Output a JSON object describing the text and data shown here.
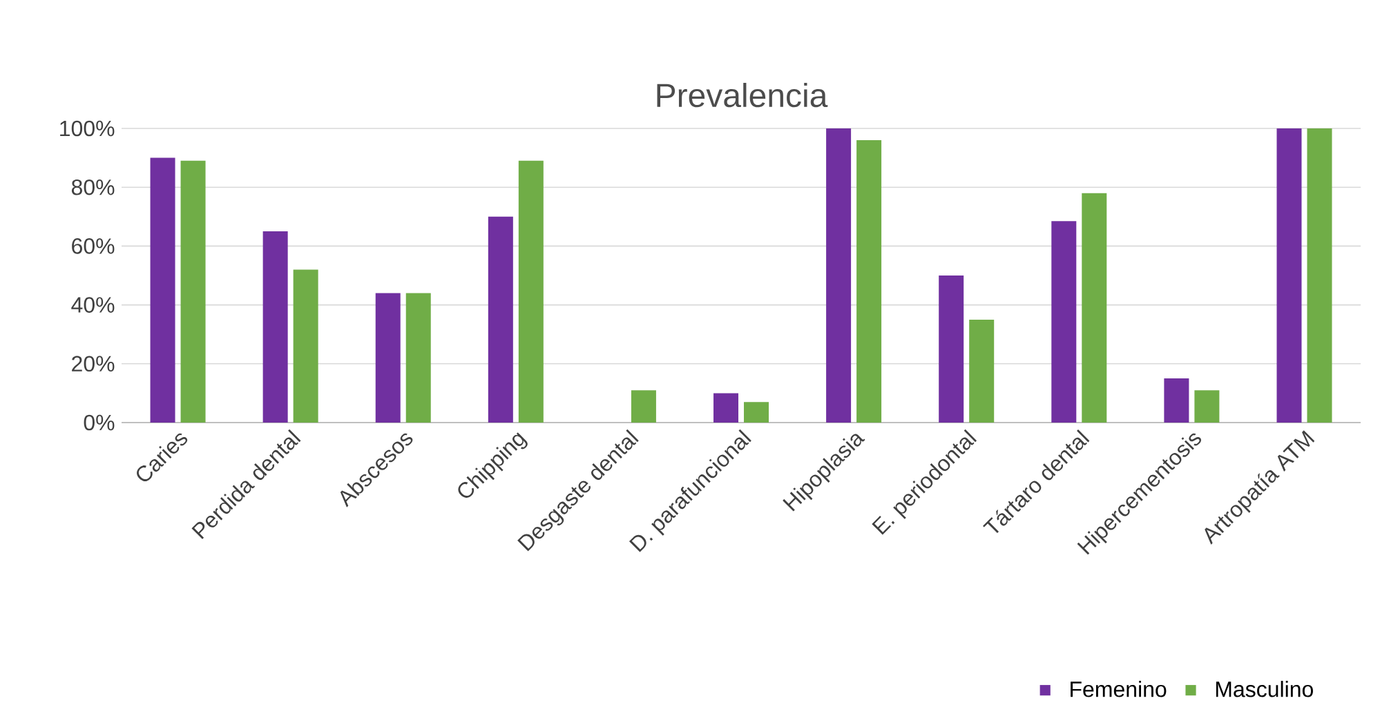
{
  "chart_data": {
    "type": "bar",
    "title": "Prevalencia",
    "categories": [
      "Caries",
      "Perdida dental",
      "Abscesos",
      "Chipping",
      "Desgaste dental",
      "D. parafuncional",
      "Hipoplasia",
      "E. periodontal",
      "Tártaro dental",
      "Hipercementosis",
      "Artropatía ATM"
    ],
    "series": [
      {
        "name": "Femenino",
        "color": "#7030a0",
        "values": [
          90,
          65,
          44,
          70,
          0,
          10,
          100,
          50,
          68.5,
          15,
          100
        ]
      },
      {
        "name": "Masculino",
        "color": "#70ad47",
        "values": [
          89,
          52,
          44,
          89,
          11,
          7,
          96,
          35,
          78,
          11,
          100
        ]
      }
    ],
    "ylim": [
      0,
      100
    ],
    "yticks": [
      {
        "value": 0,
        "label": "0%"
      },
      {
        "value": 20,
        "label": "20%"
      },
      {
        "value": 40,
        "label": "40%"
      },
      {
        "value": 60,
        "label": "60%"
      },
      {
        "value": 80,
        "label": "80%"
      },
      {
        "value": 100,
        "label": "100%"
      }
    ],
    "grid": "y",
    "legend": "bottom right"
  }
}
